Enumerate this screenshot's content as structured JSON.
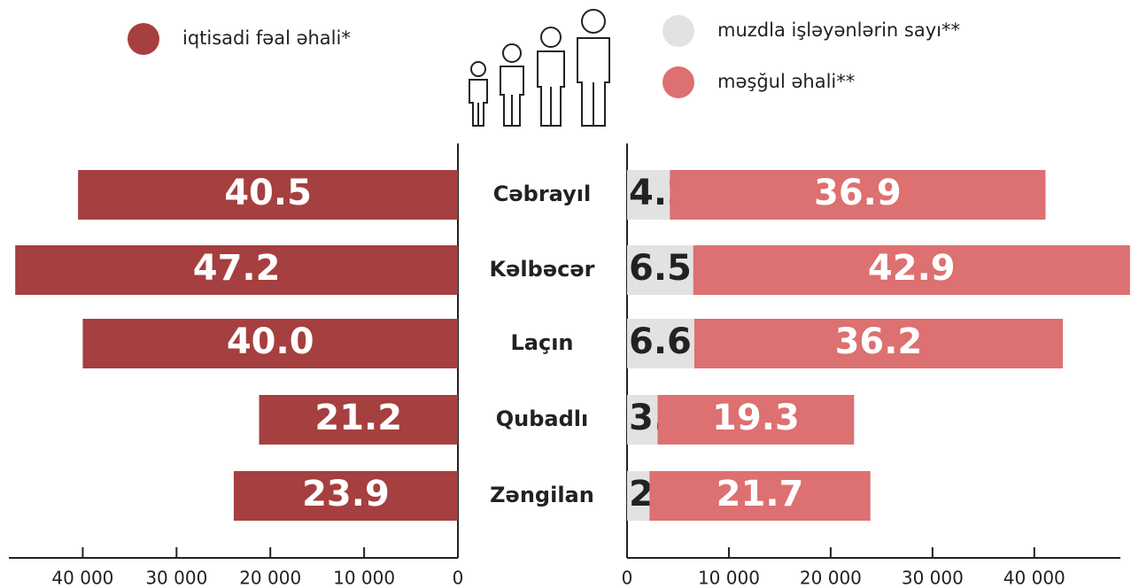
{
  "chart_data": {
    "type": "bar",
    "stacked": true,
    "categories": [
      "Cəbrayıl",
      "Kəlbəcər",
      "Laçın",
      "Qubadlı",
      "Zəngilan"
    ],
    "series": [
      {
        "name": "iqtisadi fəal əhali*",
        "color": "#a63f3f",
        "axis": "x",
        "values": [
          40500,
          47200,
          40000,
          21200,
          23900
        ],
        "value_labels": [
          "40.5",
          "47.2",
          "40.0",
          "21.2",
          "23.9"
        ]
      },
      {
        "name": "muzdla işləyənlərin sayı**",
        "color": "#e2e2e2",
        "axis": "x2",
        "values": [
          4200,
          6500,
          6600,
          3000,
          2200
        ],
        "value_labels": [
          "4.2",
          "6.5",
          "6.6",
          "3.0",
          "2.2"
        ]
      },
      {
        "name": "məşğul əhali**",
        "color": "#dd7070",
        "axis": "x2",
        "values": [
          36900,
          42900,
          36200,
          19300,
          21700
        ],
        "value_labels": [
          "36.9",
          "42.9",
          "36.2",
          "19.3",
          "21.7"
        ]
      }
    ],
    "xlim": [
      0,
      47500
    ],
    "xticks": [
      0,
      {
        "value": 10000,
        "label": "10 000"
      },
      {
        "value": 20000,
        "label": "20 000"
      },
      {
        "value": 30000,
        "label": "30 000"
      },
      {
        "value": 40000,
        "label": "40 000"
      }
    ],
    "x2lim": [
      0,
      49500
    ],
    "x2ticks": [
      0,
      {
        "value": 10000,
        "label": "10 000"
      },
      {
        "value": 20000,
        "label": "20 000"
      },
      {
        "value": 30000,
        "label": "30 000"
      },
      {
        "value": 40000,
        "label": "40 000"
      }
    ]
  }
}
